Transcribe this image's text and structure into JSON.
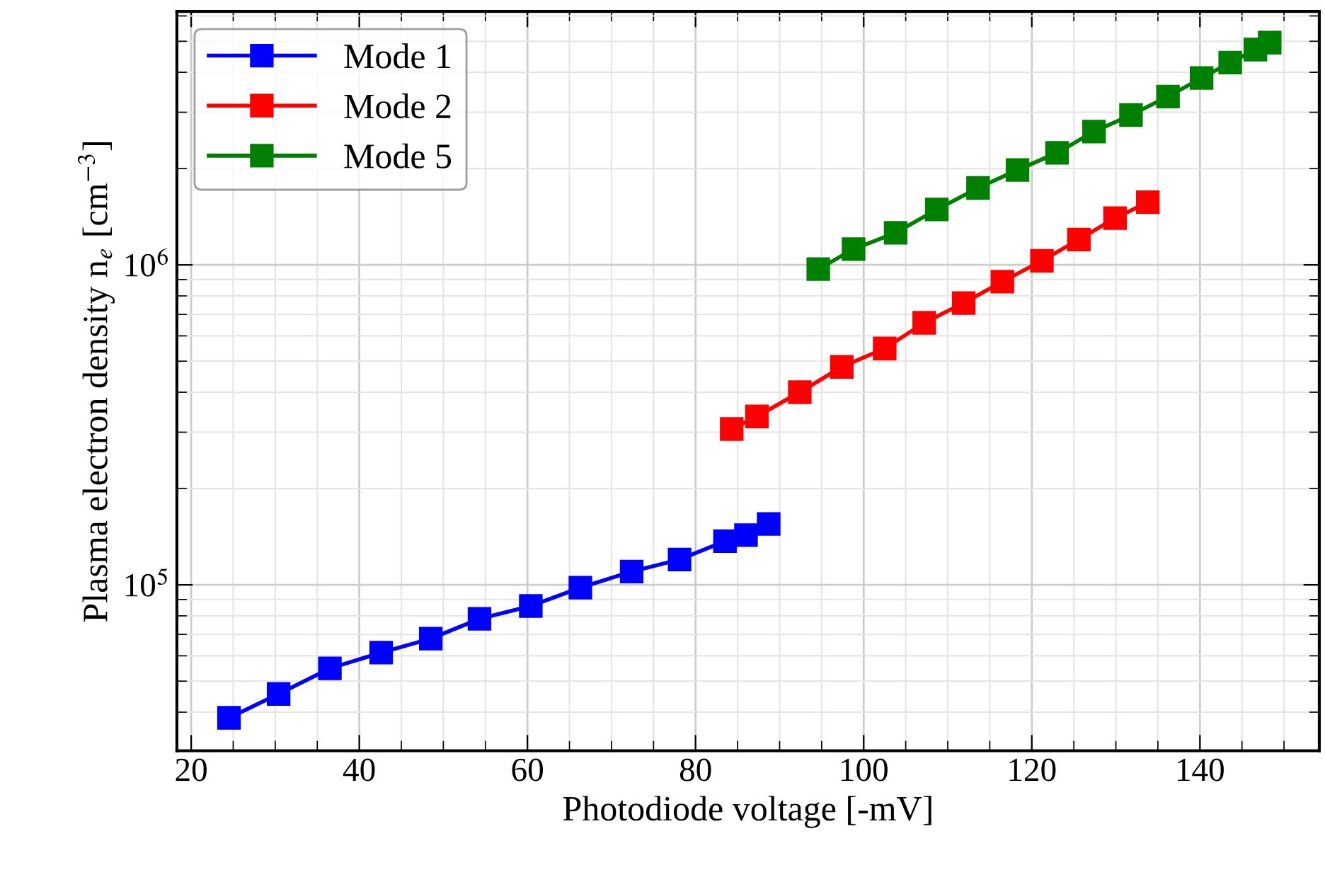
{
  "chart_data": {
    "type": "line",
    "xlabel": "Photodiode voltage [-mV]",
    "ylabel": "Plasma electron density n$_{e}$ [cm$^{−3}$]",
    "log": "y",
    "grid": true,
    "legend": "top left",
    "marker": "square",
    "line_style": "solid",
    "xlim": [
      18.3,
      154.2
    ],
    "xticks": [
      20,
      40,
      60,
      80,
      100,
      120,
      140
    ],
    "ylim": [
      30300,
      6200000
    ],
    "yticks": [
      {
        "value": 100000,
        "label": "10$^{5}$"
      },
      {
        "value": 1000000,
        "label": "10$^{6}$"
      }
    ],
    "series": [
      {
        "name": "Mode 1",
        "color": "#0000ff",
        "x": [
          24.5,
          30.4,
          36.5,
          42.6,
          48.5,
          54.3,
          60.4,
          66.3,
          72.4,
          78.1,
          83.5,
          86.0,
          88.7
        ],
        "values": [
          38400,
          45600,
          54800,
          61400,
          67900,
          78300,
          85900,
          98000,
          110000,
          120000,
          137000,
          143000,
          155000
        ]
      },
      {
        "name": "Mode 2",
        "color": "#ff0000",
        "x": [
          84.3,
          87.3,
          92.4,
          97.4,
          102.5,
          107.2,
          111.9,
          116.5,
          121.2,
          125.6,
          129.9,
          133.8
        ],
        "values": [
          307000,
          336000,
          400000,
          480000,
          548000,
          659000,
          760000,
          886000,
          1030000,
          1200000,
          1400000,
          1570000
        ]
      },
      {
        "name": "Mode 5",
        "color": "#008000",
        "x": [
          94.6,
          98.8,
          103.8,
          108.7,
          113.6,
          118.3,
          123.0,
          127.4,
          131.8,
          136.2,
          140.2,
          143.6,
          146.6,
          148.3
        ],
        "values": [
          970000,
          1120000,
          1260000,
          1490000,
          1740000,
          1980000,
          2240000,
          2610000,
          2940000,
          3360000,
          3840000,
          4290000,
          4710000,
          4950000
        ]
      }
    ]
  }
}
